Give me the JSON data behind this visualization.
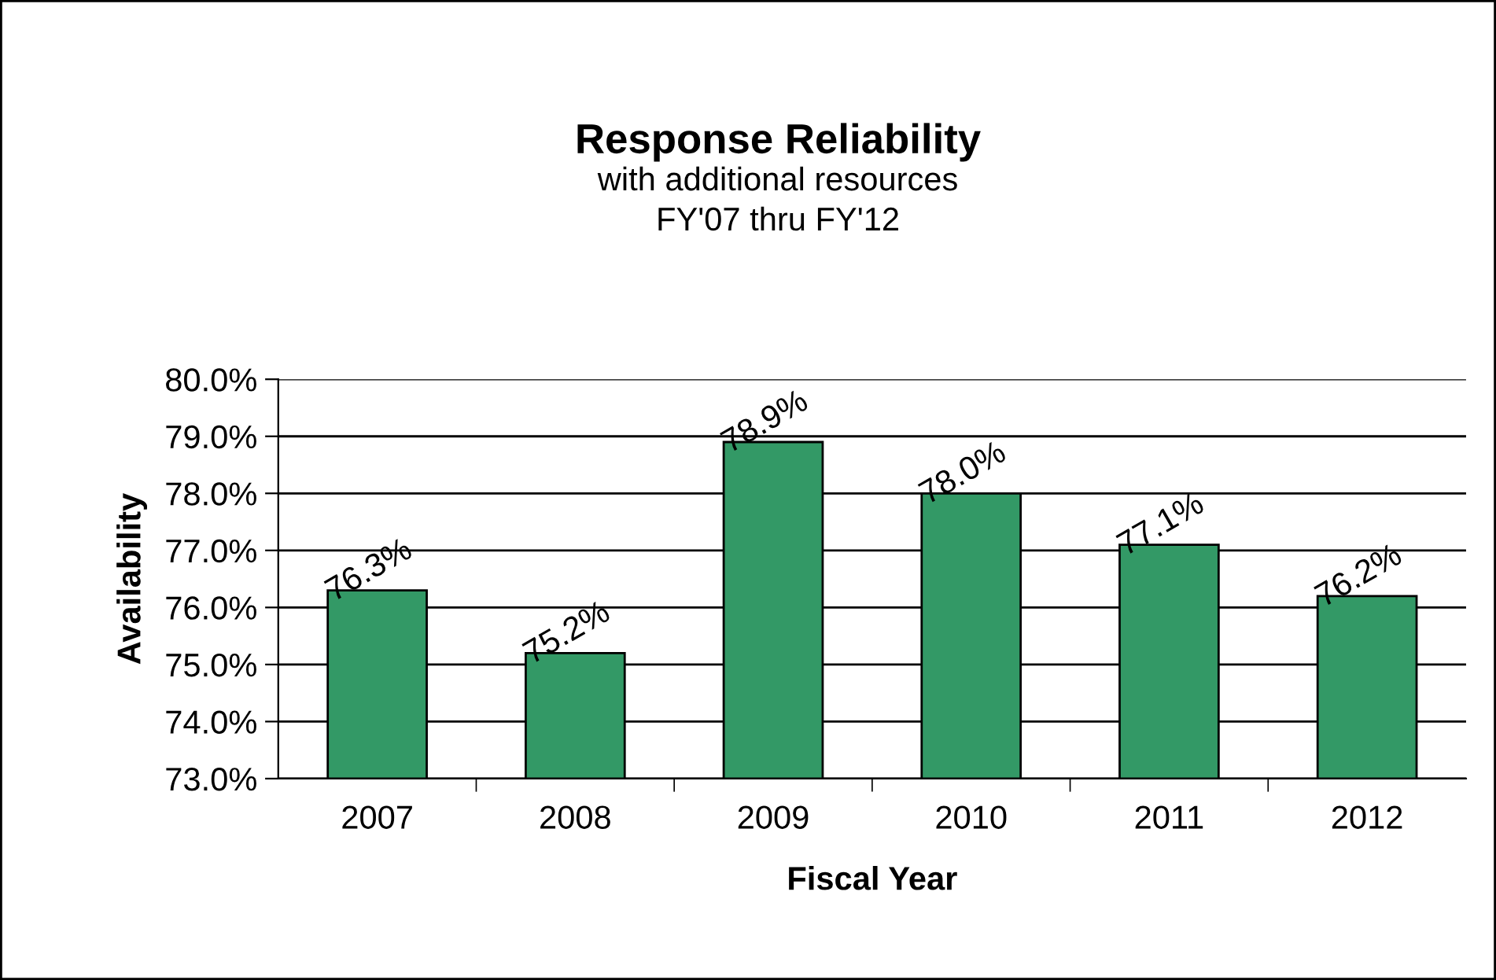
{
  "chart_data": {
    "type": "bar",
    "title": "Response Reliability",
    "subtitle": "with additional resources\nFY'07 thru FY'12",
    "xlabel": "Fiscal Year",
    "ylabel": "Availability",
    "categories": [
      "2007",
      "2008",
      "2009",
      "2010",
      "2011",
      "2012"
    ],
    "values": [
      76.3,
      75.2,
      78.9,
      78.0,
      77.1,
      76.2
    ],
    "value_labels": [
      "76.3%",
      "75.2%",
      "78.9%",
      "78.0%",
      "77.1%",
      "76.2%"
    ],
    "color": "#339966",
    "ylim": [
      73,
      80
    ],
    "yticks": [
      {
        "value": 73,
        "label": "73.0%"
      },
      {
        "value": 74,
        "label": "74.0%"
      },
      {
        "value": 75,
        "label": "75.0%"
      },
      {
        "value": 76,
        "label": "76.0%"
      },
      {
        "value": 77,
        "label": "77.0%"
      },
      {
        "value": 78,
        "label": "78.0%"
      },
      {
        "value": 79,
        "label": "79.0%"
      },
      {
        "value": 80,
        "label": "80.0%"
      }
    ],
    "grid": "y",
    "legend": false
  }
}
